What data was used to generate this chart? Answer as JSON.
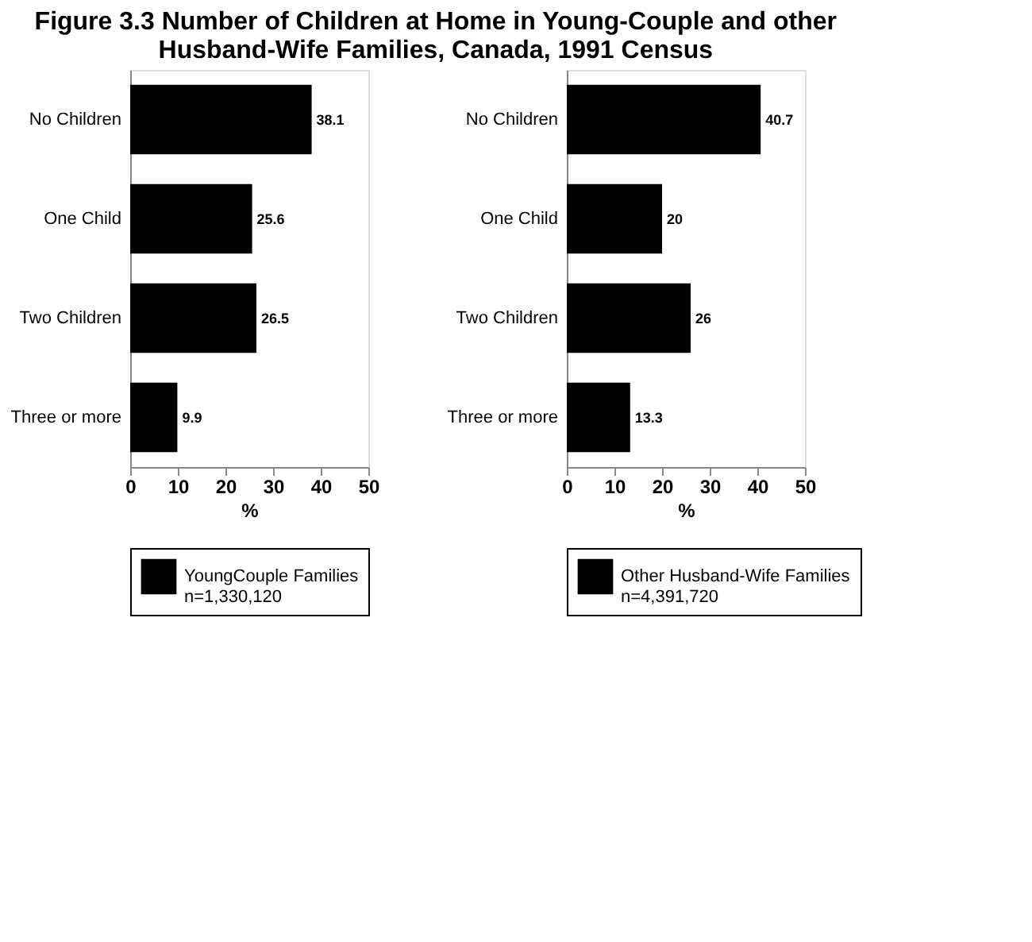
{
  "chart_data": [
    {
      "type": "bar",
      "orientation": "horizontal",
      "title": "Figure 3.3 Number of Children at Home in Young-Couple and other Husband-Wife Families, Canada, 1991 Census",
      "categories": [
        "No Children",
        "One Child",
        "Two Children",
        "Three or more"
      ],
      "series": [
        {
          "name": "YoungCouple Families\nn=1,330,120",
          "color": "#000000",
          "values": [
            38.1,
            25.6,
            26.5,
            9.9
          ]
        }
      ],
      "xlabel": "%",
      "xlim": [
        0,
        50
      ],
      "xticks": [
        0,
        10,
        20,
        30,
        40,
        50
      ],
      "data_labels": true,
      "grid": false,
      "legend": "bottom"
    },
    {
      "type": "bar",
      "orientation": "horizontal",
      "categories": [
        "No Children",
        "One Child",
        "Two Children",
        "Three or more"
      ],
      "series": [
        {
          "name": "Other Husband-Wife Families\nn=4,391,720",
          "color": "#000000",
          "values": [
            40.7,
            20,
            26,
            13.3
          ]
        }
      ],
      "xlabel": "%",
      "xlim": [
        0,
        50
      ],
      "xticks": [
        0,
        10,
        20,
        30,
        40,
        50
      ],
      "data_labels": true,
      "grid": false,
      "legend": "bottom"
    }
  ]
}
